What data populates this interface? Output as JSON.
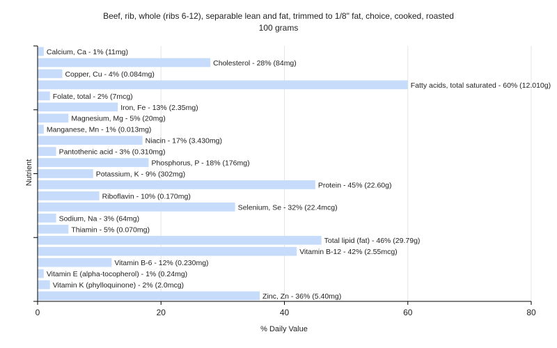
{
  "chart_data": {
    "type": "bar",
    "orientation": "horizontal",
    "title": "Beef, rib, whole (ribs 6-12), separable lean and fat, trimmed to 1/8\" fat, choice, cooked, roasted",
    "subtitle": "100 grams",
    "xlabel": "% Daily Value",
    "ylabel": "Nutrient",
    "xlim": [
      0,
      80
    ],
    "xticks": [
      0,
      20,
      40,
      60,
      80
    ],
    "grid": true,
    "bar_color": "#c6dcfa",
    "categories": [
      "Calcium, Ca",
      "Cholesterol",
      "Copper, Cu",
      "Fatty acids, total saturated",
      "Folate, total",
      "Iron, Fe",
      "Magnesium, Mg",
      "Manganese, Mn",
      "Niacin",
      "Pantothenic acid",
      "Phosphorus, P",
      "Potassium, K",
      "Protein",
      "Riboflavin",
      "Selenium, Se",
      "Sodium, Na",
      "Thiamin",
      "Total lipid (fat)",
      "Vitamin B-12",
      "Vitamin B-6",
      "Vitamin E (alpha-tocopherol)",
      "Vitamin K (phylloquinone)",
      "Zinc, Zn"
    ],
    "values": [
      1,
      28,
      4,
      60,
      2,
      13,
      5,
      1,
      17,
      3,
      18,
      9,
      45,
      10,
      32,
      3,
      5,
      46,
      42,
      12,
      1,
      2,
      36
    ],
    "labels": [
      "Calcium, Ca - 1% (11mg)",
      "Cholesterol - 28% (84mg)",
      "Copper, Cu - 4% (0.084mg)",
      "Fatty acids, total saturated - 60% (12.010g)",
      "Folate, total - 2% (7mcg)",
      "Iron, Fe - 13% (2.35mg)",
      "Magnesium, Mg - 5% (20mg)",
      "Manganese, Mn - 1% (0.013mg)",
      "Niacin - 17% (3.430mg)",
      "Pantothenic acid - 3% (0.310mg)",
      "Phosphorus, P - 18% (176mg)",
      "Potassium, K - 9% (302mg)",
      "Protein - 45% (22.60g)",
      "Riboflavin - 10% (0.170mg)",
      "Selenium, Se - 32% (22.4mcg)",
      "Sodium, Na - 3% (64mg)",
      "Thiamin - 5% (0.070mg)",
      "Total lipid (fat) - 46% (29.79g)",
      "Vitamin B-12 - 42% (2.55mcg)",
      "Vitamin B-6 - 12% (0.230mg)",
      "Vitamin E (alpha-tocopherol) - 1% (0.24mg)",
      "Vitamin K (phylloquinone) - 2% (2.0mcg)",
      "Zinc, Zn - 36% (5.40mg)"
    ]
  }
}
